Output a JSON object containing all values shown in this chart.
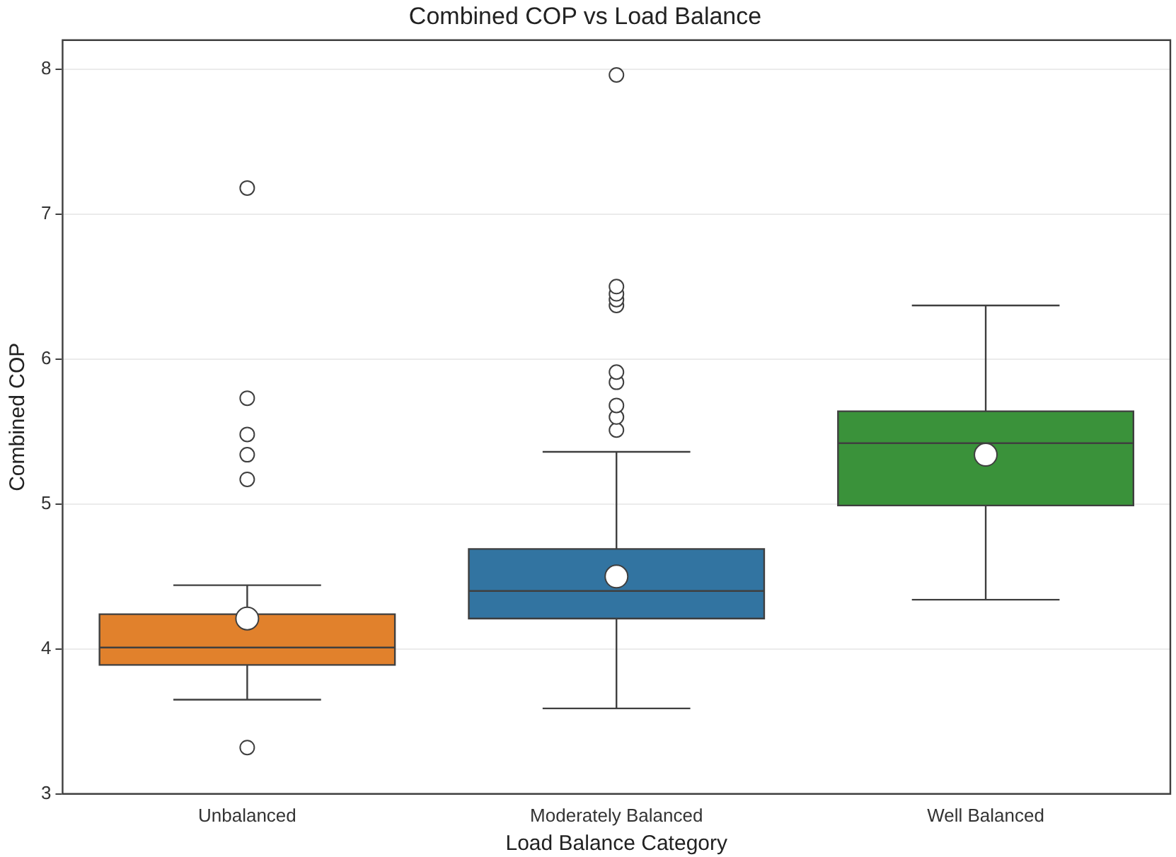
{
  "chart_data": {
    "type": "box",
    "title": "Combined COP vs Load Balance",
    "xlabel": "Load Balance Category",
    "ylabel": "Combined COP",
    "categories": [
      "Unbalanced",
      "Moderately Balanced",
      "Well Balanced"
    ],
    "colors": [
      "#e1812c",
      "#3274a1",
      "#3a923a"
    ],
    "boxes": [
      {
        "low": 3.65,
        "q1": 3.89,
        "median": 4.01,
        "q3": 4.24,
        "high": 4.44,
        "mean": 4.21,
        "outliers": [
          3.32,
          5.17,
          5.34,
          5.48,
          5.73,
          7.18
        ]
      },
      {
        "low": 3.59,
        "q1": 4.21,
        "median": 4.4,
        "q3": 4.69,
        "high": 5.36,
        "mean": 4.5,
        "outliers": [
          5.51,
          5.6,
          5.68,
          5.84,
          5.91,
          6.37,
          6.41,
          6.45,
          6.5,
          7.96
        ]
      },
      {
        "low": 4.34,
        "q1": 4.99,
        "median": 5.42,
        "q3": 5.64,
        "high": 6.37,
        "mean": 5.34
      }
    ],
    "ylim": [
      3,
      8.2
    ],
    "yticks": [
      3,
      4,
      5,
      6,
      7,
      8
    ],
    "grid": "y"
  }
}
